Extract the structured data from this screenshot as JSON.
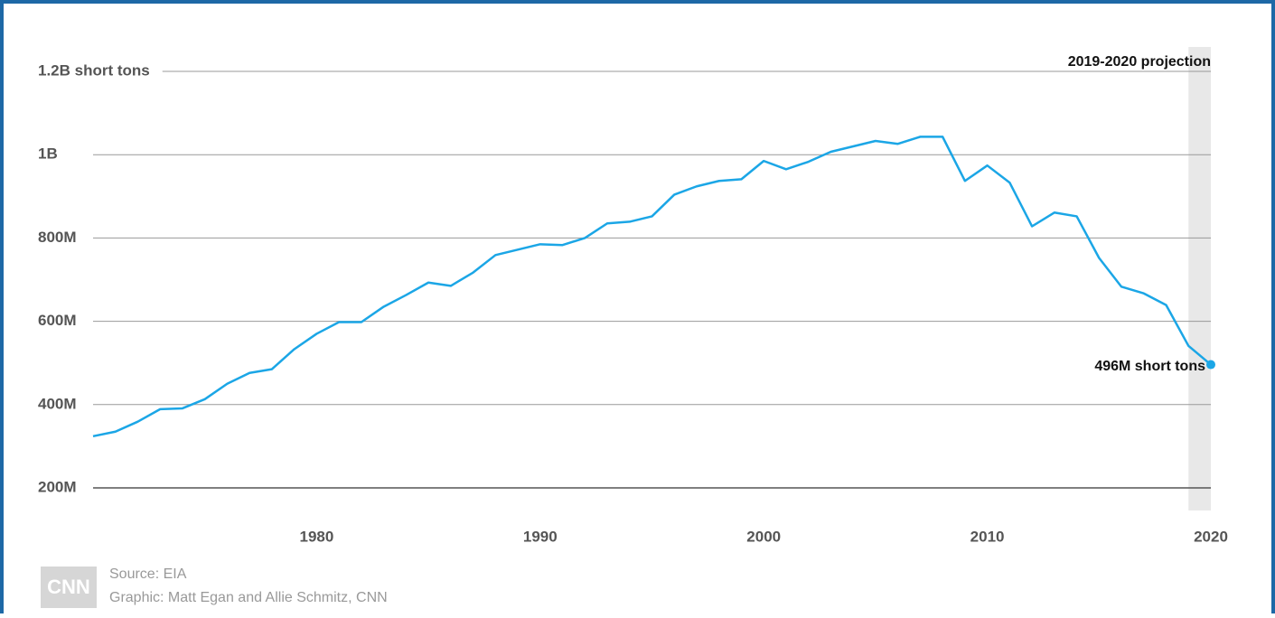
{
  "chart_data": {
    "type": "line",
    "x": [
      1970,
      1971,
      1972,
      1973,
      1974,
      1975,
      1976,
      1977,
      1978,
      1979,
      1980,
      1981,
      1982,
      1983,
      1984,
      1985,
      1986,
      1987,
      1988,
      1989,
      1990,
      1991,
      1992,
      1993,
      1994,
      1995,
      1996,
      1997,
      1998,
      1999,
      2000,
      2001,
      2002,
      2003,
      2004,
      2005,
      2006,
      2007,
      2008,
      2009,
      2010,
      2011,
      2012,
      2013,
      2014,
      2015,
      2016,
      2017,
      2018,
      2019,
      2020
    ],
    "series": [
      {
        "color": "#1ba6e6",
        "values": [
          324,
          335,
          359,
          389,
          391,
          413,
          450,
          476,
          485,
          533,
          570,
          598,
          598,
          635,
          663,
          693,
          685,
          717,
          759,
          772,
          785,
          783,
          800,
          835,
          839,
          852,
          904,
          924,
          937,
          941,
          985,
          965,
          983,
          1007,
          1020,
          1033,
          1026,
          1043,
          1043,
          937,
          974,
          933,
          828,
          861,
          852,
          752,
          683,
          667,
          639,
          541,
          496
        ]
      }
    ],
    "xlim": [
      1970,
      2020
    ],
    "ylim": [
      200,
      1200
    ],
    "xticks": [
      1980,
      1990,
      2000,
      2010,
      2020
    ],
    "yticks": [
      {
        "value": 200,
        "label": "200M"
      },
      {
        "value": 400,
        "label": "400M"
      },
      {
        "value": 600,
        "label": "600M"
      },
      {
        "value": 800,
        "label": "800M"
      },
      {
        "value": 1000,
        "label": "1B"
      },
      {
        "value": 1200,
        "label": "1.2B short tons"
      }
    ],
    "grid": true,
    "end_label": "496M short tons",
    "projection": {
      "label": "2019-2020 projection",
      "x": [
        2019,
        2020
      ]
    },
    "source": "Source: EIA",
    "credit": "Graphic: Matt Egan and Allie Schmitz, CNN",
    "logo": "CNN"
  }
}
